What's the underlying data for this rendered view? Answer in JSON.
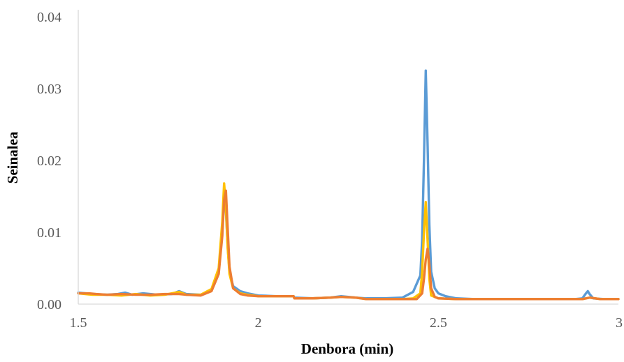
{
  "chart_data": {
    "type": "line",
    "title": "",
    "xlabel": "Denbora (min)",
    "ylabel": "Seinalea",
    "xlim": [
      1.5,
      3.0
    ],
    "ylim": [
      0.0,
      0.04
    ],
    "x_ticks": [
      "1.5",
      "2",
      "2.5",
      "3"
    ],
    "y_ticks": [
      "0.00",
      "0.01",
      "0.02",
      "0.03",
      "0.04"
    ],
    "grid": false,
    "legend": "none",
    "series": [
      {
        "color": "#5b9bd5",
        "points": [
          [
            1.5,
            0.0016
          ],
          [
            1.54,
            0.0014
          ],
          [
            1.58,
            0.0013
          ],
          [
            1.61,
            0.0014
          ],
          [
            1.63,
            0.0016
          ],
          [
            1.65,
            0.0013
          ],
          [
            1.68,
            0.0015
          ],
          [
            1.72,
            0.0013
          ],
          [
            1.76,
            0.0014
          ],
          [
            1.78,
            0.0018
          ],
          [
            1.8,
            0.0014
          ],
          [
            1.84,
            0.0013
          ],
          [
            1.87,
            0.002
          ],
          [
            1.89,
            0.0045
          ],
          [
            1.9,
            0.01
          ],
          [
            1.905,
            0.0158
          ],
          [
            1.91,
            0.013
          ],
          [
            1.915,
            0.008
          ],
          [
            1.92,
            0.0045
          ],
          [
            1.93,
            0.0025
          ],
          [
            1.95,
            0.0018
          ],
          [
            1.97,
            0.0015
          ],
          [
            2.0,
            0.0012
          ],
          [
            2.05,
            0.0011
          ],
          [
            2.098,
            0.0011
          ],
          [
            2.1,
            0.0009
          ],
          [
            2.15,
            0.0008
          ],
          [
            2.2,
            0.0009
          ],
          [
            2.23,
            0.0011
          ],
          [
            2.27,
            0.0009
          ],
          [
            2.3,
            0.0008
          ],
          [
            2.35,
            0.0008
          ],
          [
            2.4,
            0.0009
          ],
          [
            2.43,
            0.0017
          ],
          [
            2.45,
            0.004
          ],
          [
            2.455,
            0.009
          ],
          [
            2.46,
            0.02
          ],
          [
            2.465,
            0.0325
          ],
          [
            2.47,
            0.0225
          ],
          [
            2.475,
            0.011
          ],
          [
            2.48,
            0.0045
          ],
          [
            2.49,
            0.0022
          ],
          [
            2.5,
            0.0015
          ],
          [
            2.52,
            0.0011
          ],
          [
            2.55,
            0.0008
          ],
          [
            2.6,
            0.0007
          ],
          [
            2.7,
            0.0007
          ],
          [
            2.8,
            0.0007
          ],
          [
            2.88,
            0.0007
          ],
          [
            2.9,
            0.0008
          ],
          [
            2.91,
            0.0015
          ],
          [
            2.915,
            0.0018
          ],
          [
            2.92,
            0.0014
          ],
          [
            2.93,
            0.0008
          ],
          [
            2.96,
            0.0007
          ],
          [
            3.0,
            0.0007
          ]
        ]
      },
      {
        "color": "#ffc000",
        "points": [
          [
            1.5,
            0.0015
          ],
          [
            1.54,
            0.0013
          ],
          [
            1.58,
            0.0013
          ],
          [
            1.62,
            0.0012
          ],
          [
            1.66,
            0.0014
          ],
          [
            1.7,
            0.0012
          ],
          [
            1.74,
            0.0013
          ],
          [
            1.78,
            0.0017
          ],
          [
            1.8,
            0.0013
          ],
          [
            1.84,
            0.0013
          ],
          [
            1.87,
            0.0021
          ],
          [
            1.89,
            0.005
          ],
          [
            1.9,
            0.0115
          ],
          [
            1.905,
            0.0168
          ],
          [
            1.91,
            0.0135
          ],
          [
            1.915,
            0.0078
          ],
          [
            1.92,
            0.0042
          ],
          [
            1.93,
            0.0022
          ],
          [
            1.95,
            0.0015
          ],
          [
            1.97,
            0.0013
          ],
          [
            2.0,
            0.0011
          ],
          [
            2.05,
            0.0011
          ],
          [
            2.098,
            0.0011
          ],
          [
            2.1,
            0.0008
          ],
          [
            2.15,
            0.0008
          ],
          [
            2.2,
            0.0009
          ],
          [
            2.23,
            0.001
          ],
          [
            2.27,
            0.0009
          ],
          [
            2.3,
            0.0007
          ],
          [
            2.35,
            0.0007
          ],
          [
            2.4,
            0.0007
          ],
          [
            2.43,
            0.0008
          ],
          [
            2.45,
            0.0015
          ],
          [
            2.455,
            0.0045
          ],
          [
            2.46,
            0.01
          ],
          [
            2.465,
            0.0142
          ],
          [
            2.47,
            0.009
          ],
          [
            2.475,
            0.0035
          ],
          [
            2.48,
            0.0012
          ],
          [
            2.5,
            0.0008
          ],
          [
            2.55,
            0.0007
          ],
          [
            2.6,
            0.0007
          ],
          [
            2.7,
            0.0007
          ],
          [
            2.8,
            0.0007
          ],
          [
            2.9,
            0.0007
          ],
          [
            2.92,
            0.0009
          ],
          [
            2.95,
            0.0007
          ],
          [
            3.0,
            0.0007
          ]
        ]
      },
      {
        "color": "#ed7d31",
        "points": [
          [
            1.5,
            0.0015
          ],
          [
            1.53,
            0.0015
          ],
          [
            1.55,
            0.0014
          ],
          [
            1.58,
            0.0013
          ],
          [
            1.62,
            0.0014
          ],
          [
            1.66,
            0.0013
          ],
          [
            1.7,
            0.0013
          ],
          [
            1.74,
            0.0014
          ],
          [
            1.78,
            0.0014
          ],
          [
            1.8,
            0.0013
          ],
          [
            1.84,
            0.0012
          ],
          [
            1.87,
            0.0018
          ],
          [
            1.89,
            0.0042
          ],
          [
            1.9,
            0.0095
          ],
          [
            1.905,
            0.0145
          ],
          [
            1.91,
            0.0158
          ],
          [
            1.915,
            0.0105
          ],
          [
            1.92,
            0.0052
          ],
          [
            1.93,
            0.0022
          ],
          [
            1.95,
            0.0014
          ],
          [
            1.97,
            0.0012
          ],
          [
            2.0,
            0.0011
          ],
          [
            2.05,
            0.0011
          ],
          [
            2.098,
            0.0011
          ],
          [
            2.1,
            0.0008
          ],
          [
            2.15,
            0.0008
          ],
          [
            2.2,
            0.0009
          ],
          [
            2.23,
            0.001
          ],
          [
            2.27,
            0.0009
          ],
          [
            2.3,
            0.0007
          ],
          [
            2.35,
            0.0007
          ],
          [
            2.4,
            0.0007
          ],
          [
            2.44,
            0.0007
          ],
          [
            2.455,
            0.0015
          ],
          [
            2.46,
            0.0035
          ],
          [
            2.465,
            0.0062
          ],
          [
            2.47,
            0.0077
          ],
          [
            2.475,
            0.0055
          ],
          [
            2.48,
            0.0022
          ],
          [
            2.49,
            0.001
          ],
          [
            2.5,
            0.0008
          ],
          [
            2.55,
            0.0007
          ],
          [
            2.6,
            0.0007
          ],
          [
            2.7,
            0.0007
          ],
          [
            2.8,
            0.0007
          ],
          [
            2.9,
            0.0007
          ],
          [
            2.92,
            0.0009
          ],
          [
            2.95,
            0.0007
          ],
          [
            3.0,
            0.0007
          ]
        ]
      }
    ]
  }
}
